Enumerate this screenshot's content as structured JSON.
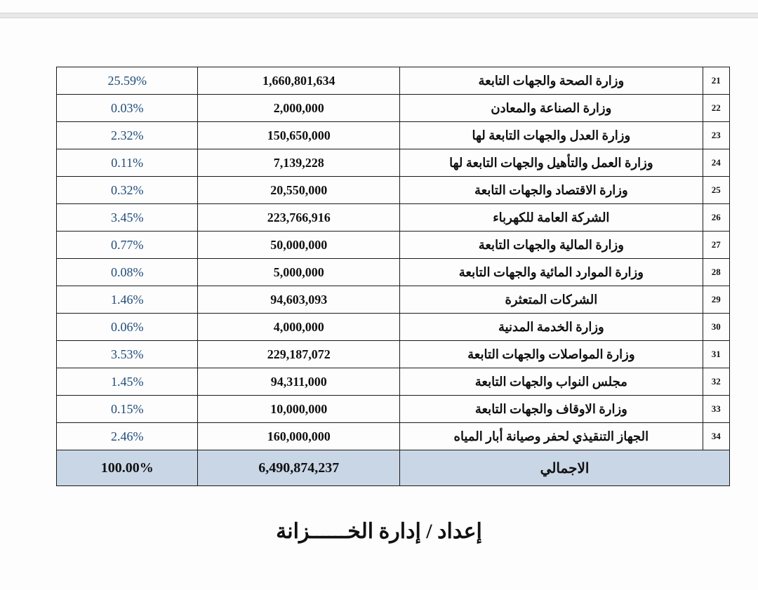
{
  "table": {
    "type": "table",
    "columns": [
      "percent",
      "amount",
      "name",
      "index"
    ],
    "col_widths_pct": [
      21,
      30,
      45,
      4
    ],
    "border_color": "#1a1a1a",
    "pct_color": "#1f4b79",
    "text_color": "#111111",
    "total_bg": "#c9d6e6",
    "background_color": "#fdfdfd",
    "font_family": "Times New Roman",
    "pct_fontsize": 18,
    "amt_fontsize": 18,
    "name_fontsize": 18,
    "idx_fontsize": 13,
    "total_fontsize": 20,
    "rows": [
      {
        "pct": "25.59%",
        "amt": "1,660,801,634",
        "name": "وزارة الصحة والجهات التابعة",
        "idx": "21"
      },
      {
        "pct": "0.03%",
        "amt": "2,000,000",
        "name": "وزارة الصناعة والمعادن",
        "idx": "22"
      },
      {
        "pct": "2.32%",
        "amt": "150,650,000",
        "name": "وزارة العدل والجهات التابعة لها",
        "idx": "23"
      },
      {
        "pct": "0.11%",
        "amt": "7,139,228",
        "name": "وزارة العمل والتأهيل والجهات التابعة لها",
        "idx": "24"
      },
      {
        "pct": "0.32%",
        "amt": "20,550,000",
        "name": "وزارة الاقتصاد والجهات التابعة",
        "idx": "25"
      },
      {
        "pct": "3.45%",
        "amt": "223,766,916",
        "name": "الشركة العامة للكهرباء",
        "idx": "26"
      },
      {
        "pct": "0.77%",
        "amt": "50,000,000",
        "name": "وزارة المالية والجهات التابعة",
        "idx": "27"
      },
      {
        "pct": "0.08%",
        "amt": "5,000,000",
        "name": "وزارة الموارد المائية والجهات التابعة",
        "idx": "28"
      },
      {
        "pct": "1.46%",
        "amt": "94,603,093",
        "name": "الشركات المتعثرة",
        "idx": "29"
      },
      {
        "pct": "0.06%",
        "amt": "4,000,000",
        "name": "وزارة الخدمة المدنية",
        "idx": "30"
      },
      {
        "pct": "3.53%",
        "amt": "229,187,072",
        "name": "وزارة المواصلات والجهات التابعة",
        "idx": "31"
      },
      {
        "pct": "1.45%",
        "amt": "94,311,000",
        "name": "مجلس النواب  والجهات التابعة",
        "idx": "32"
      },
      {
        "pct": "0.15%",
        "amt": "10,000,000",
        "name": "وزارة الاوقاف والجهات التابعة",
        "idx": "33"
      },
      {
        "pct": "2.46%",
        "amt": "160,000,000",
        "name": "الجهاز التنقيذي لحفر وصيانة أبار المياه",
        "idx": "34"
      }
    ],
    "total": {
      "pct": "100.00%",
      "amt": "6,490,874,237",
      "name": "الاجمالي"
    }
  },
  "footer": "إعداد / إدارة الخــــــزانة"
}
